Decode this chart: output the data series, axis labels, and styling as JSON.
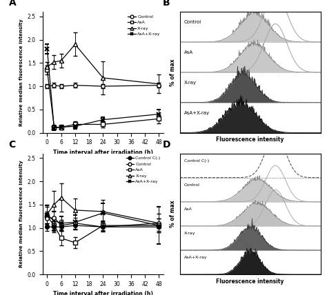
{
  "panel_A": {
    "xlabel": "Time interval after irradiation (h)",
    "ylabel": "Relative median fluorescence intensity",
    "x": [
      0,
      3,
      6,
      12,
      24,
      48
    ],
    "control": {
      "y": [
        1.0,
        1.02,
        1.0,
        1.02,
        1.0,
        1.02
      ],
      "yerr": [
        0.05,
        0.05,
        0.05,
        0.05,
        0.05,
        0.05
      ]
    },
    "AsA": {
      "y": [
        1.35,
        0.12,
        0.12,
        0.18,
        0.18,
        0.3
      ],
      "yerr": [
        0.1,
        0.05,
        0.05,
        0.06,
        0.06,
        0.1
      ]
    },
    "Xray": {
      "y": [
        1.42,
        1.52,
        1.55,
        1.9,
        1.18,
        1.05
      ],
      "yerr": [
        0.1,
        0.15,
        0.15,
        0.25,
        0.35,
        0.2
      ]
    },
    "AsAXray": {
      "y": [
        1.8,
        0.1,
        0.12,
        0.14,
        0.28,
        0.4
      ],
      "yerr": [
        0.1,
        0.04,
        0.04,
        0.05,
        0.06,
        0.1
      ]
    },
    "ylim": [
      0.0,
      2.6
    ],
    "yticks": [
      0.0,
      0.5,
      1.0,
      1.5,
      2.0,
      2.5
    ]
  },
  "panel_C": {
    "xlabel": "Time interval after irradiation (h)",
    "ylabel": "Relative median fluorescence intensity",
    "x": [
      0,
      3,
      6,
      12,
      24,
      48
    ],
    "controlN": {
      "y": [
        1.02,
        1.02,
        1.02,
        1.05,
        1.02,
        1.02
      ],
      "yerr": [
        0.08,
        0.08,
        0.08,
        0.08,
        0.08,
        0.08
      ]
    },
    "control": {
      "y": [
        1.2,
        1.22,
        1.05,
        1.1,
        1.02,
        1.1
      ],
      "yerr": [
        0.15,
        0.15,
        0.12,
        0.12,
        0.1,
        0.1
      ]
    },
    "AsA": {
      "y": [
        1.25,
        1.05,
        0.78,
        0.68,
        1.05,
        1.05
      ],
      "yerr": [
        0.2,
        0.15,
        0.15,
        0.12,
        0.1,
        0.15
      ]
    },
    "Xray": {
      "y": [
        1.3,
        1.5,
        1.65,
        1.38,
        1.35,
        1.1
      ],
      "yerr": [
        0.2,
        0.3,
        0.3,
        0.25,
        0.25,
        0.2
      ]
    },
    "AsAXray": {
      "y": [
        1.28,
        1.15,
        1.1,
        1.12,
        1.32,
        1.05
      ],
      "yerr": [
        0.2,
        0.2,
        0.15,
        0.15,
        0.2,
        0.4
      ]
    },
    "ylim": [
      0.0,
      2.6
    ],
    "yticks": [
      0.0,
      0.5,
      1.0,
      1.5,
      2.0,
      2.5
    ]
  },
  "xticks": [
    0,
    6,
    12,
    18,
    24,
    30,
    36,
    42,
    48
  ],
  "background": "#ffffff"
}
